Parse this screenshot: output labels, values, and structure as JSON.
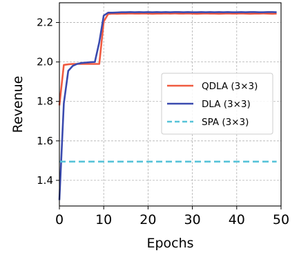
{
  "chart_data": {
    "type": "line",
    "xlabel": "Epochs",
    "ylabel": "Revenue",
    "xlim": [
      0,
      50
    ],
    "ylim": [
      1.27,
      2.3
    ],
    "xticks": [
      "0",
      "10",
      "20",
      "30",
      "40",
      "50"
    ],
    "yticks": [
      "1.4",
      "1.6",
      "1.8",
      "2.0",
      "2.2"
    ],
    "grid": true,
    "legend_position": "right",
    "series": [
      {
        "name": "QDLA (3×3)",
        "color": "#f05a40",
        "style": "solid",
        "x": [
          0,
          1,
          2,
          3,
          4,
          5,
          6,
          7,
          8,
          9,
          10,
          11,
          12,
          13,
          14,
          15,
          16,
          17,
          18,
          19,
          20,
          21,
          22,
          23,
          24,
          25,
          26,
          27,
          28,
          29,
          30,
          31,
          32,
          33,
          34,
          35,
          36,
          37,
          38,
          39,
          40,
          41,
          42,
          43,
          44,
          45,
          46,
          47,
          48,
          49
        ],
        "y": [
          1.78,
          1.985,
          1.988,
          1.99,
          1.99,
          1.99,
          1.99,
          1.99,
          1.99,
          1.99,
          2.205,
          2.243,
          2.245,
          2.244,
          2.245,
          2.245,
          2.246,
          2.245,
          2.245,
          2.246,
          2.245,
          2.244,
          2.245,
          2.245,
          2.246,
          2.245,
          2.246,
          2.245,
          2.245,
          2.246,
          2.245,
          2.244,
          2.245,
          2.246,
          2.245,
          2.245,
          2.244,
          2.245,
          2.246,
          2.245,
          2.245,
          2.246,
          2.245,
          2.244,
          2.245,
          2.245,
          2.246,
          2.245,
          2.244,
          2.245
        ]
      },
      {
        "name": "DLA (3×3)",
        "color": "#3a4aaf",
        "style": "solid",
        "x": [
          0,
          1,
          2,
          3,
          4,
          5,
          6,
          7,
          8,
          9,
          10,
          11,
          12,
          13,
          14,
          15,
          16,
          17,
          18,
          19,
          20,
          21,
          22,
          23,
          24,
          25,
          26,
          27,
          28,
          29,
          30,
          31,
          32,
          33,
          34,
          35,
          36,
          37,
          38,
          39,
          40,
          41,
          42,
          43,
          44,
          45,
          46,
          47,
          48,
          49
        ],
        "y": [
          1.3,
          1.79,
          1.955,
          1.98,
          1.99,
          1.995,
          1.997,
          1.999,
          2.0,
          2.1,
          2.235,
          2.25,
          2.25,
          2.251,
          2.252,
          2.252,
          2.253,
          2.252,
          2.253,
          2.252,
          2.253,
          2.252,
          2.253,
          2.252,
          2.253,
          2.252,
          2.253,
          2.253,
          2.252,
          2.253,
          2.252,
          2.252,
          2.253,
          2.252,
          2.253,
          2.252,
          2.253,
          2.252,
          2.253,
          2.252,
          2.252,
          2.253,
          2.252,
          2.253,
          2.253,
          2.252,
          2.252,
          2.253,
          2.253,
          2.252
        ]
      },
      {
        "name": "SPA (3×3)",
        "color": "#56c3d8",
        "style": "dashed",
        "x": [
          0,
          49
        ],
        "y": [
          1.495,
          1.495
        ]
      }
    ]
  }
}
